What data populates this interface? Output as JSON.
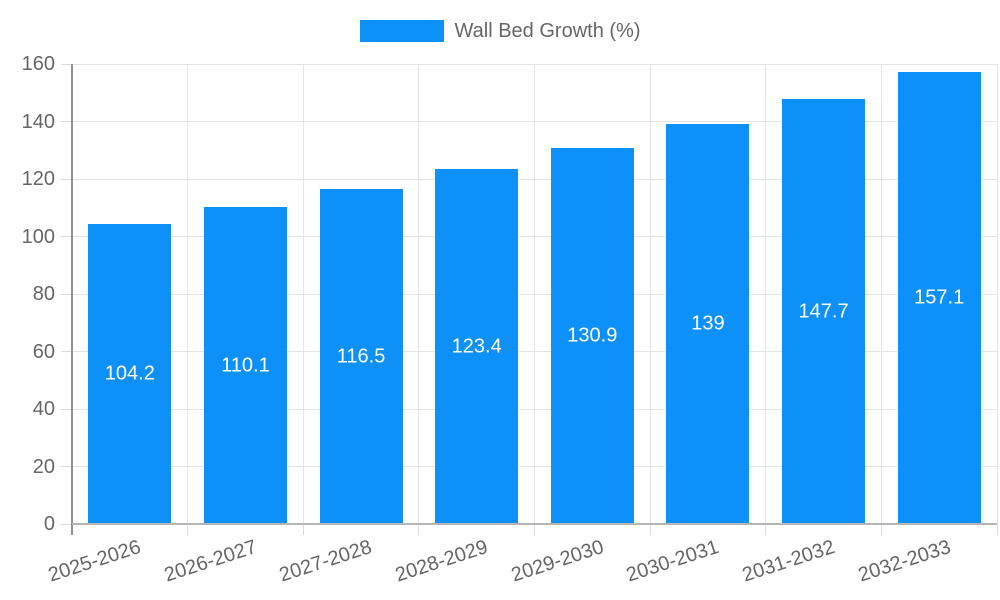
{
  "legend": {
    "label": "Wall Bed Growth (%)",
    "position": "top"
  },
  "chart_data": {
    "type": "bar",
    "title": "",
    "xlabel": "",
    "ylabel": "",
    "categories": [
      "2025-2026",
      "2026-2027",
      "2027-2028",
      "2028-2029",
      "2029-2030",
      "2030-2031",
      "2031-2032",
      "2032-2033"
    ],
    "series": [
      {
        "name": "Wall Bed Growth (%)",
        "values": [
          104.2,
          110.1,
          116.5,
          123.4,
          130.9,
          139,
          147.7,
          157.1
        ]
      }
    ],
    "value_labels_shown": true,
    "value_label_position": "bar-middle",
    "ylim": [
      0,
      160
    ],
    "yticks": [
      0,
      20,
      40,
      60,
      80,
      100,
      120,
      140,
      160
    ],
    "grid": true,
    "legend_position": "top",
    "x_label_rotation_deg": -18,
    "colors": {
      "bar": "#0D90F8",
      "bar_value_label": "#FFFFFF",
      "axis_text": "#666666",
      "gridline": "#E4E4E4",
      "y_axis_line": "#8F8F8F",
      "x_axis_line": "#B5B5B5",
      "tick": "#DCDCDC",
      "first_x_tick": "#8F8F8F"
    }
  }
}
